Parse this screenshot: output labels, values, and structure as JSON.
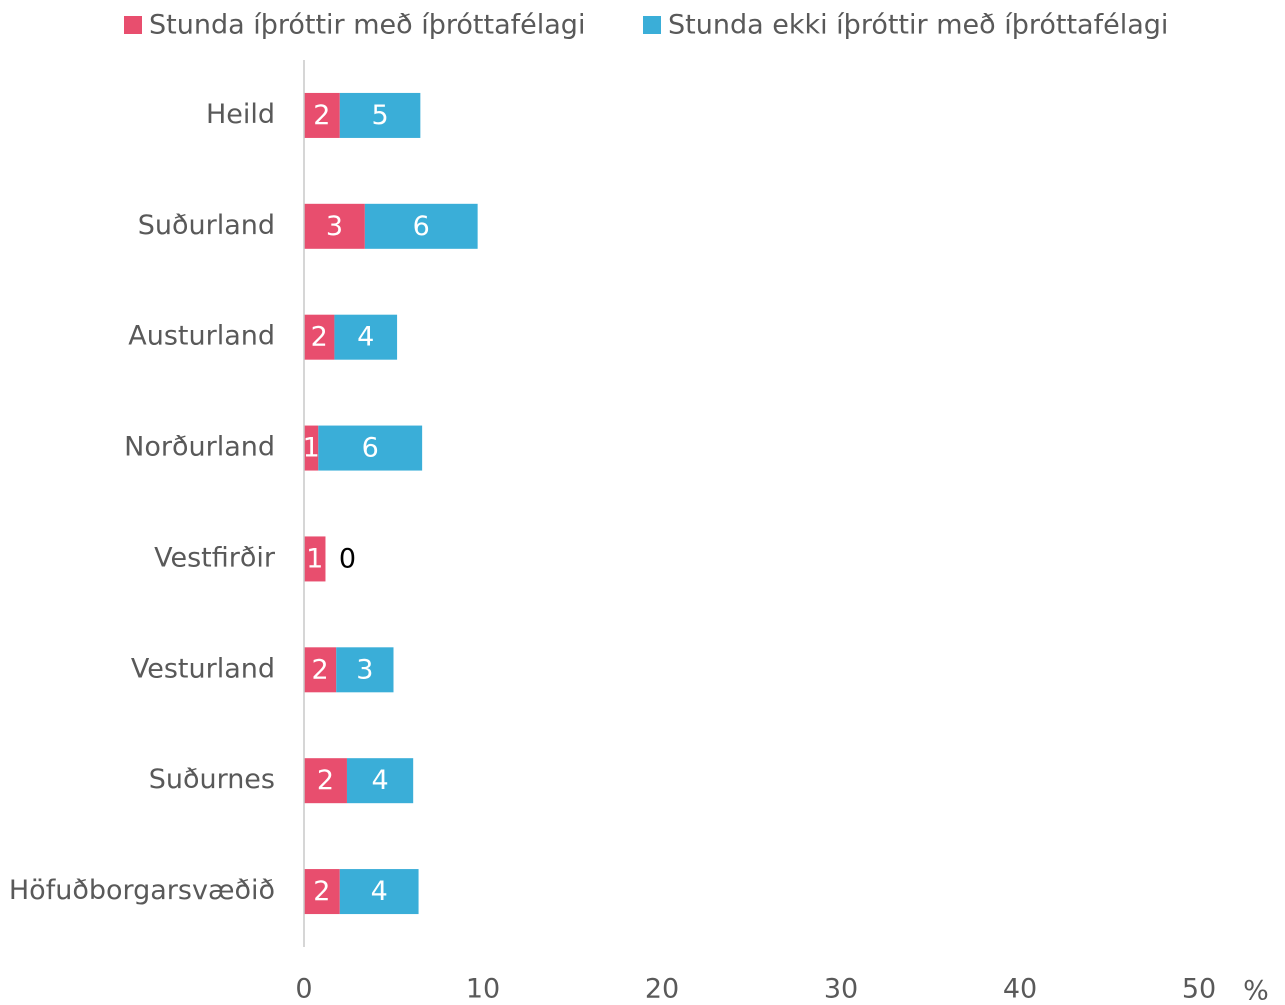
{
  "chart_data": {
    "type": "stacked_barh",
    "categories": [
      "Heild",
      "Suðurland",
      "Austurland",
      "Norðurland",
      "Vestfirðir",
      "Vesturland",
      "Suðurnes",
      "Höfuðborgarsvæðið"
    ],
    "series": [
      {
        "name": "Stunda íþróttir með íþróttafélagi",
        "color": "#e84e6e",
        "values": [
          2.0,
          3.4,
          1.7,
          0.8,
          1.2,
          1.8,
          2.4,
          2.0
        ],
        "value_labels": [
          "2",
          "3",
          "2",
          "1",
          "1",
          "2",
          "2",
          "2"
        ]
      },
      {
        "name": "Stunda ekki íþróttir með íþróttafélagi",
        "color": "#3aaed8",
        "values": [
          4.5,
          6.3,
          3.5,
          5.8,
          0,
          3.2,
          3.7,
          4.4
        ],
        "value_labels": [
          "5",
          "6",
          "4",
          "6",
          "0",
          "3",
          "4",
          "4"
        ]
      }
    ],
    "xlim": [
      0,
      50
    ],
    "xticks": [
      0,
      10,
      20,
      30,
      40,
      50
    ],
    "x_unit": "%",
    "grid": false
  }
}
